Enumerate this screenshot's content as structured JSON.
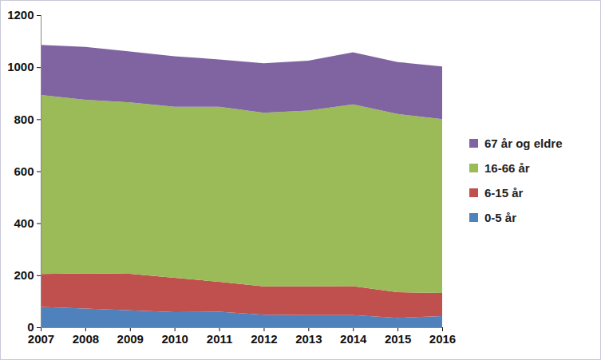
{
  "chart_data": {
    "type": "area",
    "stacked": true,
    "x": [
      2007,
      2008,
      2009,
      2010,
      2011,
      2012,
      2013,
      2014,
      2015,
      2016
    ],
    "xlim": [
      2007,
      2016
    ],
    "xticks": [
      2007,
      2008,
      2009,
      2010,
      2011,
      2012,
      2013,
      2014,
      2015,
      2016
    ],
    "ylim": [
      0,
      1200
    ],
    "yticks": [
      0,
      200,
      400,
      600,
      800,
      1000,
      1200
    ],
    "grid": false,
    "legend": "right",
    "series": [
      {
        "name": "0-5 år",
        "color": "#4f81bd",
        "values": [
          78,
          72,
          65,
          58,
          60,
          48,
          47,
          47,
          36,
          43
        ]
      },
      {
        "name": "6-15 år",
        "color": "#c0504d",
        "values": [
          127,
          135,
          141,
          132,
          115,
          109,
          110,
          111,
          99,
          89
        ]
      },
      {
        "name": "16-66 år",
        "color": "#9bbb59",
        "values": [
          688,
          668,
          659,
          658,
          673,
          668,
          676,
          699,
          685,
          668
        ]
      },
      {
        "name": "67 år og eldre",
        "color": "#8064a2",
        "values": [
          193,
          203,
          195,
          194,
          182,
          190,
          192,
          200,
          200,
          203
        ]
      }
    ]
  }
}
